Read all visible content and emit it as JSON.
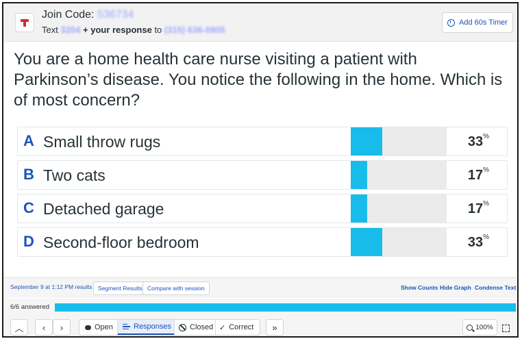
{
  "header": {
    "join_label": "Join Code:",
    "join_code": "536734",
    "text_prefix": "Text",
    "text_code": "3204",
    "text_middle": "+ your response",
    "text_to": "to",
    "phone": "(315) 636-0905",
    "timer_button": "Add 60s Timer"
  },
  "question": "You are a home health care nurse visiting a patient with Parkinson’s disease. You notice the following in the home. Which is of most concern?",
  "options": [
    {
      "letter": "A",
      "text": "Small throw rugs",
      "percent": "33",
      "percent_sign": "%",
      "share": 0.33
    },
    {
      "letter": "B",
      "text": "Two cats",
      "percent": "17",
      "percent_sign": "%",
      "share": 0.17
    },
    {
      "letter": "C",
      "text": "Detached garage",
      "percent": "17",
      "percent_sign": "%",
      "share": 0.17
    },
    {
      "letter": "D",
      "text": "Second-floor bedroom",
      "percent": "33",
      "percent_sign": "%",
      "share": 0.33
    }
  ],
  "results_bar": {
    "session_selector": "September 9 at 1:12 PM results",
    "segment_button": "Segment Results",
    "compare_button": "Compare with session",
    "show_counts": "Show Counts",
    "hide_graph": "Hide Graph",
    "condense_text": "Condense Text"
  },
  "answered": {
    "label": "6/6 answered",
    "fraction": 1.0
  },
  "nav": {
    "up": "^",
    "prev": "‹",
    "next": "›",
    "open": "Open",
    "responses": "Responses",
    "closed": "Closed",
    "correct": "Correct",
    "skip": "»",
    "zoom": "100%"
  },
  "colors": {
    "accent_blue": "#1b55b8",
    "bar_cyan": "#17bcea",
    "logo_red": "#d7282f"
  }
}
